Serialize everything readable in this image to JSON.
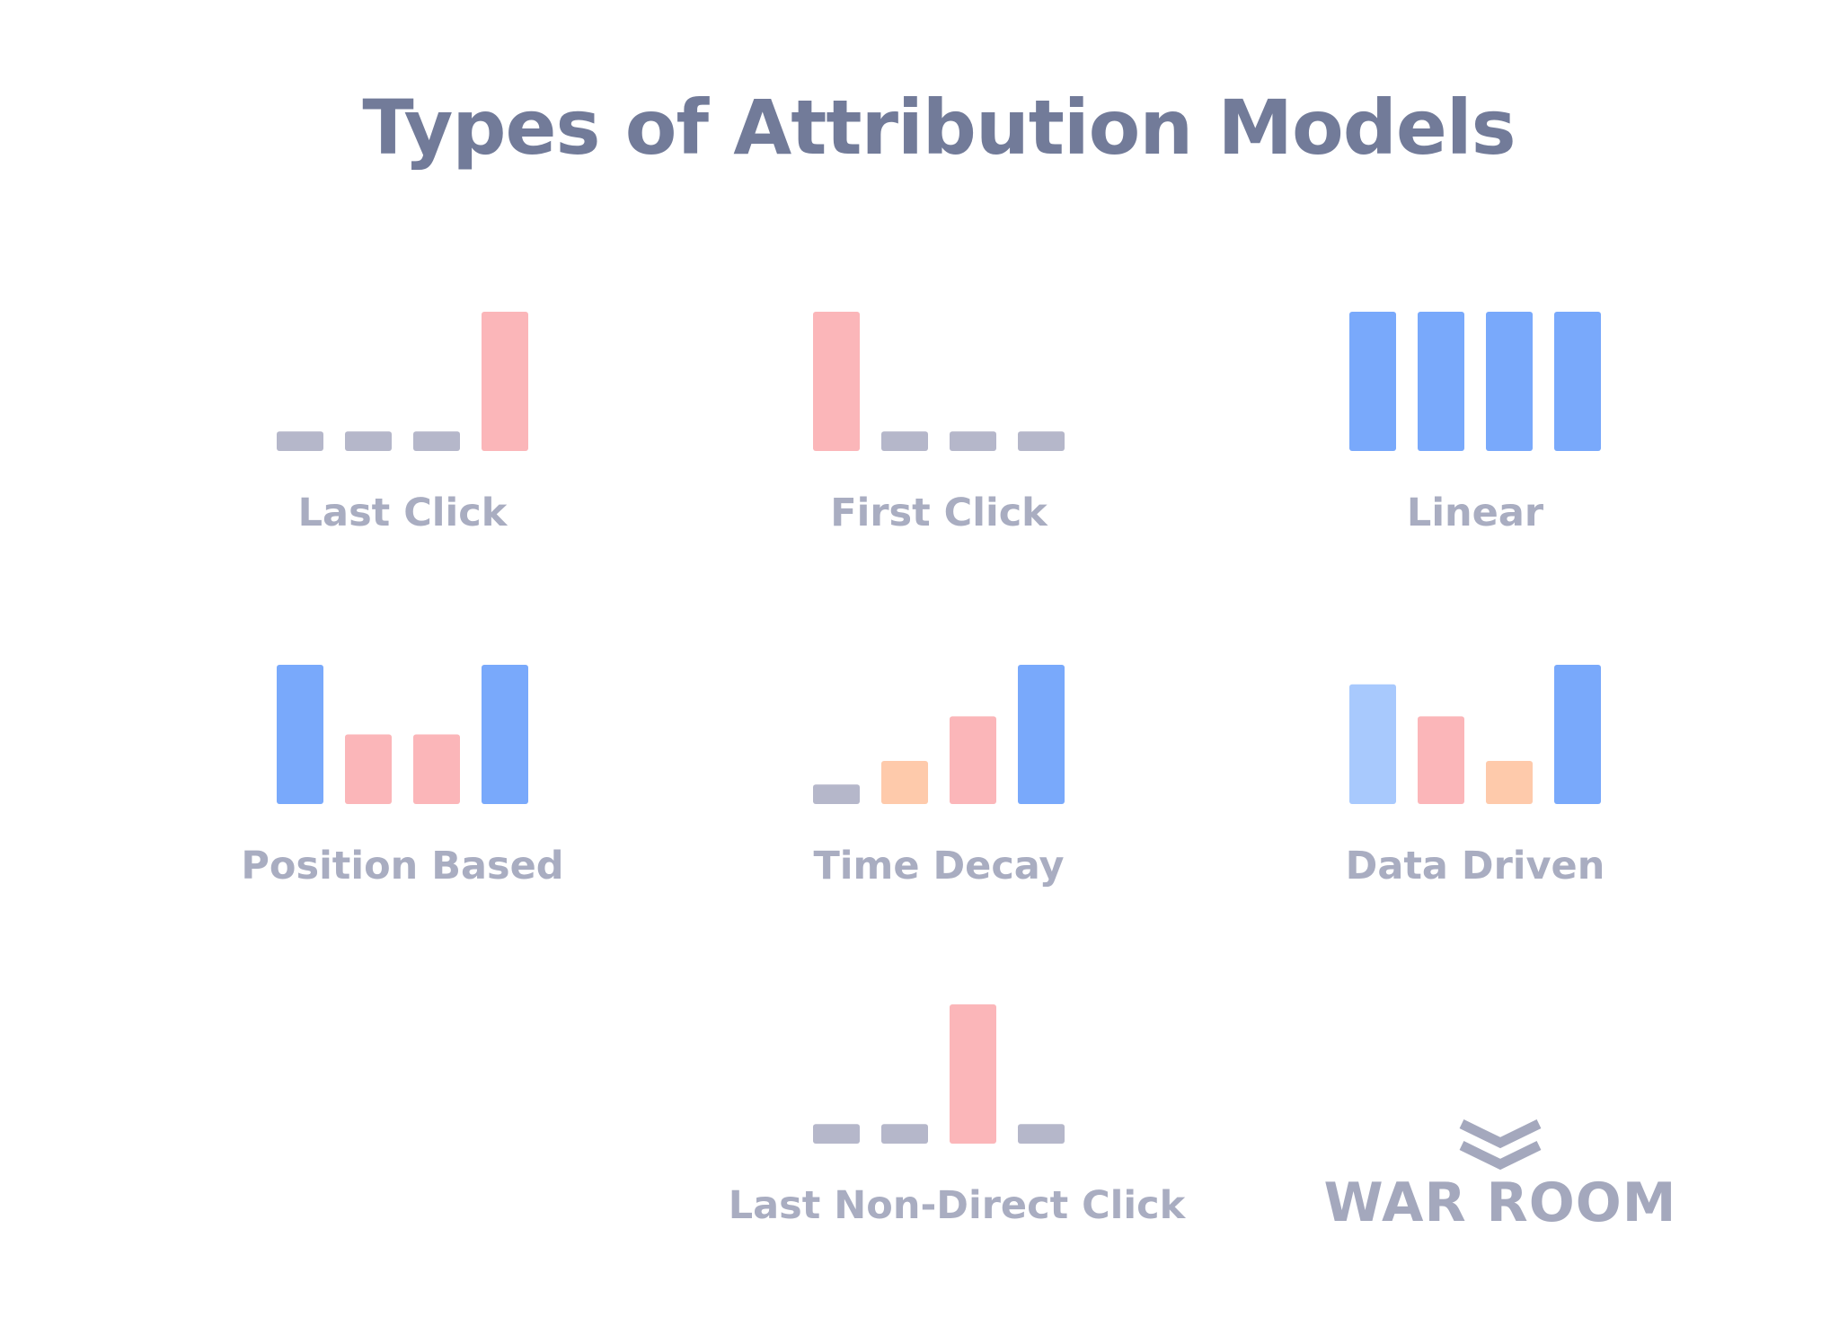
{
  "title": "Types of Attribution Models",
  "colors": {
    "gray": "#b5b7ca",
    "pink": "#fbb6b9",
    "blue": "#79a9fb",
    "light_blue": "#a8c9fd",
    "peach": "#fecaab",
    "title": "#727b99",
    "label": "#a9adc1"
  },
  "chart_data": [
    {
      "type": "bar",
      "title": "Last Click",
      "values": [
        0.14,
        0.14,
        0.14,
        1.0
      ],
      "colors": [
        "gray",
        "gray",
        "gray",
        "pink"
      ]
    },
    {
      "type": "bar",
      "title": "First Click",
      "values": [
        1.0,
        0.14,
        0.14,
        0.14
      ],
      "colors": [
        "pink",
        "gray",
        "gray",
        "gray"
      ]
    },
    {
      "type": "bar",
      "title": "Linear",
      "values": [
        1.0,
        1.0,
        1.0,
        1.0
      ],
      "colors": [
        "blue",
        "blue",
        "blue",
        "blue"
      ]
    },
    {
      "type": "bar",
      "title": "Position Based",
      "values": [
        1.0,
        0.5,
        0.5,
        1.0
      ],
      "colors": [
        "blue",
        "pink",
        "pink",
        "blue"
      ]
    },
    {
      "type": "bar",
      "title": "Time Decay",
      "values": [
        0.14,
        0.31,
        0.63,
        1.0
      ],
      "colors": [
        "gray",
        "peach",
        "pink",
        "blue"
      ]
    },
    {
      "type": "bar",
      "title": "Data Driven",
      "values": [
        0.86,
        0.63,
        0.31,
        1.0
      ],
      "colors": [
        "light_blue",
        "pink",
        "peach",
        "blue"
      ]
    },
    {
      "type": "bar",
      "title": "Last Non-Direct Click",
      "values": [
        0.14,
        0.14,
        1.0,
        0.14
      ],
      "colors": [
        "gray",
        "gray",
        "pink",
        "gray"
      ]
    }
  ],
  "logo": {
    "text": "WAR ROOM",
    "icon": "double-chevron-down-icon"
  }
}
